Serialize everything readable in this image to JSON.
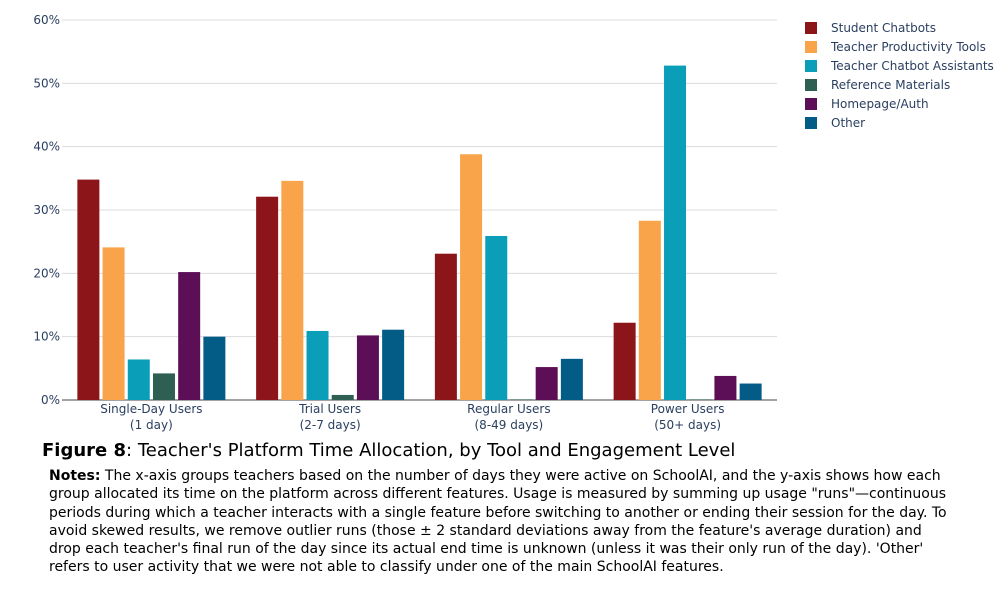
{
  "chart_data": {
    "type": "bar",
    "categories": [
      [
        "Single-Day Users",
        "(1 day)"
      ],
      [
        "Trial Users",
        "(2-7 days)"
      ],
      [
        "Regular Users",
        "(8-49 days)"
      ],
      [
        "Power Users",
        "(50+ days)"
      ]
    ],
    "series": [
      {
        "name": "Student Chatbots",
        "color": "#8b1519",
        "values": [
          34.8,
          32.1,
          23.1,
          12.2
        ]
      },
      {
        "name": "Teacher Productivity Tools",
        "color": "#f9a44a",
        "values": [
          24.1,
          34.6,
          38.8,
          28.3
        ]
      },
      {
        "name": "Teacher Chatbot Assistants",
        "color": "#0a9eb8",
        "values": [
          6.4,
          10.9,
          25.9,
          52.8
        ]
      },
      {
        "name": "Reference Materials",
        "color": "#2f5e53",
        "values": [
          4.2,
          0.8,
          0.1,
          0.1
        ]
      },
      {
        "name": "Homepage/Auth",
        "color": "#5c0f57",
        "values": [
          20.2,
          10.2,
          5.2,
          3.8
        ]
      },
      {
        "name": "Other",
        "color": "#025c86",
        "values": [
          10.0,
          11.1,
          6.5,
          2.6
        ]
      }
    ],
    "yticks": [
      "0%",
      "10%",
      "20%",
      "30%",
      "40%",
      "50%",
      "60%"
    ],
    "ylim": [
      0,
      60
    ],
    "xlabel": "",
    "ylabel": "",
    "grid": true,
    "legend": "top-right"
  },
  "caption": {
    "label": "Figure 8",
    "text": ": Teacher's Platform Time Allocation, by Tool and Engagement Level"
  },
  "notes": {
    "label": "Notes:",
    "text": " The x-axis groups teachers based on the number of days they were active on SchoolAI, and the y-axis shows how each group allocated its time on the platform across different features. Usage is measured by summing up usage \"runs\"—continuous periods during which a teacher interacts with a single feature before switching to another or ending their session for the day. To avoid skewed results, we remove outlier runs (those ± 2 standard deviations away from the feature's average duration) and drop each teacher's final run of the day since its actual end time is unknown (unless it was their only run of the day). 'Other' refers to user activity that we were not able to classify under one of the main SchoolAI features."
  }
}
